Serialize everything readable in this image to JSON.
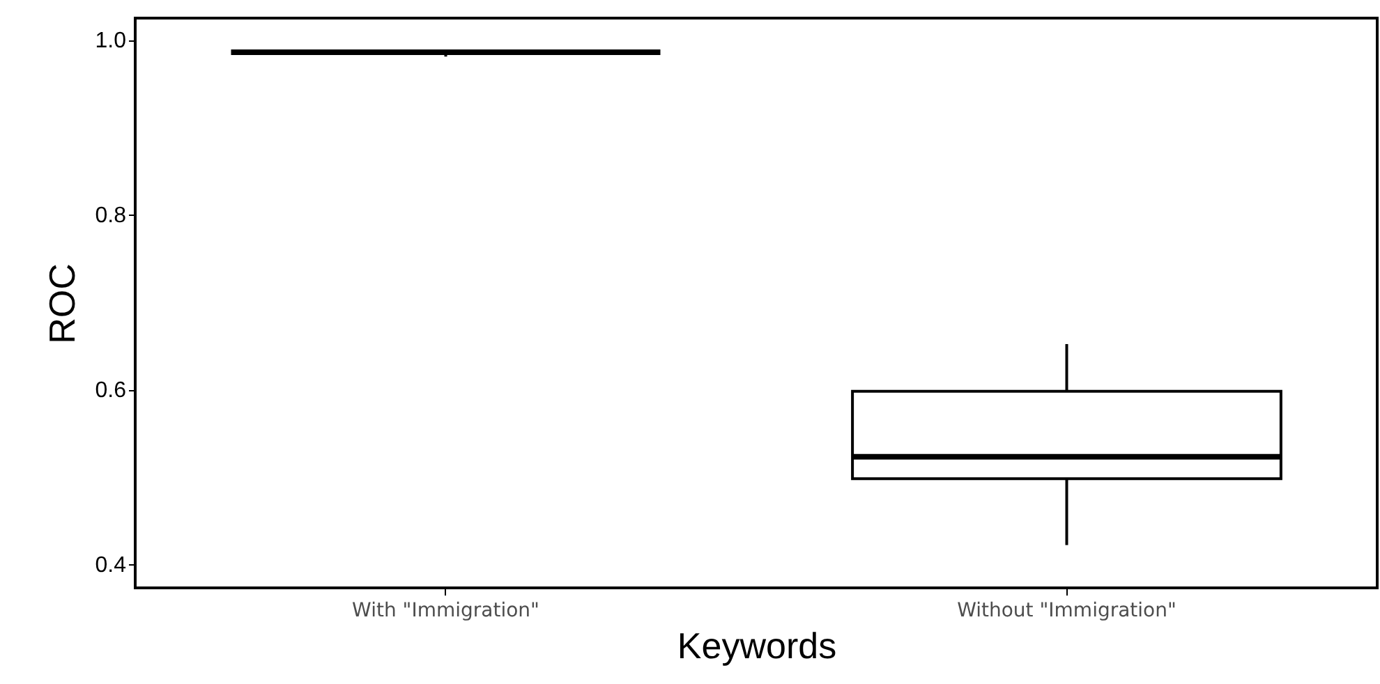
{
  "chart_data": {
    "type": "box",
    "xlabel": "Keywords",
    "ylabel": "ROC",
    "categories": [
      "With \"Immigration\"",
      "Without \"Immigration\""
    ],
    "boxes": [
      {
        "low": 0.981,
        "q1": 0.986,
        "median": 0.986,
        "q3": 0.986,
        "high": 0.987
      },
      {
        "low": 0.422,
        "q1": 0.498,
        "median": 0.523,
        "q3": 0.598,
        "high": 0.652
      }
    ],
    "ylim": [
      0.373,
      1.025
    ],
    "yticks": [
      {
        "value": 0.4,
        "label": "0.4"
      },
      {
        "value": 0.6,
        "label": "0.6"
      },
      {
        "value": 0.8,
        "label": "0.8"
      },
      {
        "value": 1,
        "label": "1.0"
      }
    ]
  }
}
